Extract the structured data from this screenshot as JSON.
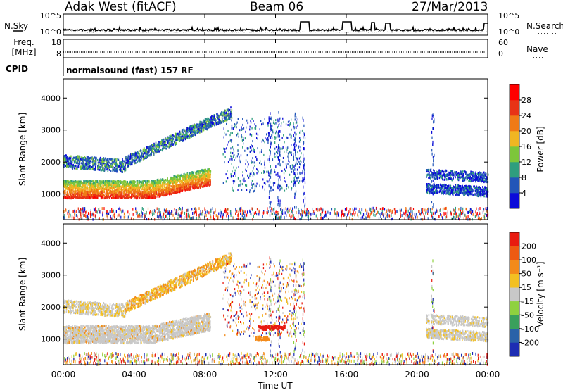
{
  "header": {
    "station": "Adak West (fitACF)",
    "beam": "Beam 06",
    "date": "27/Mar/2013"
  },
  "time_axis": {
    "label": "Time UT",
    "ticks": [
      "00:00",
      "04:00",
      "08:00",
      "12:00",
      "16:00",
      "20:00",
      "00:00"
    ],
    "range_hours": [
      0,
      24
    ]
  },
  "top_panels": {
    "nsky_label": "N.Sky",
    "nsearch_label": "N.Search",
    "nsky_ticks": [
      "10^5",
      "10^0"
    ],
    "nsearch_ticks": [
      "10^5",
      "10^0"
    ],
    "freq_label": "Freq.",
    "freq_unit": "[MHz]",
    "freq_ticks": [
      "18",
      "8"
    ],
    "nave_label": "Nave",
    "nave_ticks": [
      "60",
      "0"
    ],
    "cpid_label": "CPID",
    "cpid_value": "normalsound (fast) 157 RF"
  },
  "chart_data": [
    {
      "type": "heatmap",
      "ylabel": "Slant Range [km]",
      "ylim": [
        200,
        4600
      ],
      "yticks": [
        "1000",
        "2000",
        "3000",
        "4000"
      ],
      "colorbar": {
        "label": "Power [dB]",
        "ticks": [
          "4",
          "8",
          "12",
          "16",
          "20",
          "24",
          "28"
        ],
        "range": [
          0,
          32
        ],
        "colors": [
          "#0b0bd9",
          "#2256b8",
          "#2f9e7e",
          "#7dc63a",
          "#f0b622",
          "#f07a16",
          "#e83316",
          "#ff0000"
        ]
      },
      "features": [
        {
          "name": "F-region band",
          "x_hours": [
            0,
            8.2
          ],
          "range_km": [
            800,
            1450
          ],
          "power_db": [
            16,
            30
          ]
        },
        {
          "name": "upper band",
          "x_hours": [
            0,
            9.5
          ],
          "range_km": [
            1800,
            3500
          ],
          "power_db": [
            4,
            16
          ]
        },
        {
          "name": "evening echoes",
          "x_hours": [
            20.5,
            24
          ],
          "range_km": [
            1000,
            1800
          ],
          "power_db": [
            4,
            10
          ]
        }
      ]
    },
    {
      "type": "heatmap",
      "ylabel": "Slant Range [km]",
      "ylim": [
        200,
        4600
      ],
      "yticks": [
        "1000",
        "2000",
        "3000",
        "4000"
      ],
      "colorbar": {
        "label": "Velocity [m s⁻¹]",
        "ticks": [
          "200",
          "100",
          "50",
          "15",
          "-15",
          "-50",
          "-100",
          "-200"
        ],
        "range": [
          -250,
          250
        ],
        "colors": [
          "#1d2db3",
          "#2a62a8",
          "#3aa05c",
          "#8fd13f",
          "#c8c8c8",
          "#f3c022",
          "#f38a1a",
          "#ee5a12",
          "#e81b10"
        ]
      },
      "features": [
        {
          "name": "near-zero band",
          "x_hours": [
            0,
            9
          ],
          "range_km": [
            800,
            1500
          ],
          "velocity": [
            -15,
            15
          ]
        },
        {
          "name": "receding echoes",
          "x_hours": [
            3.5,
            9.5
          ],
          "range_km": [
            2000,
            3500
          ],
          "velocity": [
            -50,
            -15
          ]
        },
        {
          "name": "strong negative",
          "x_hours": [
            11,
            12.5
          ],
          "range_km": [
            1300,
            1450
          ],
          "velocity": [
            -200,
            -100
          ]
        }
      ]
    }
  ]
}
